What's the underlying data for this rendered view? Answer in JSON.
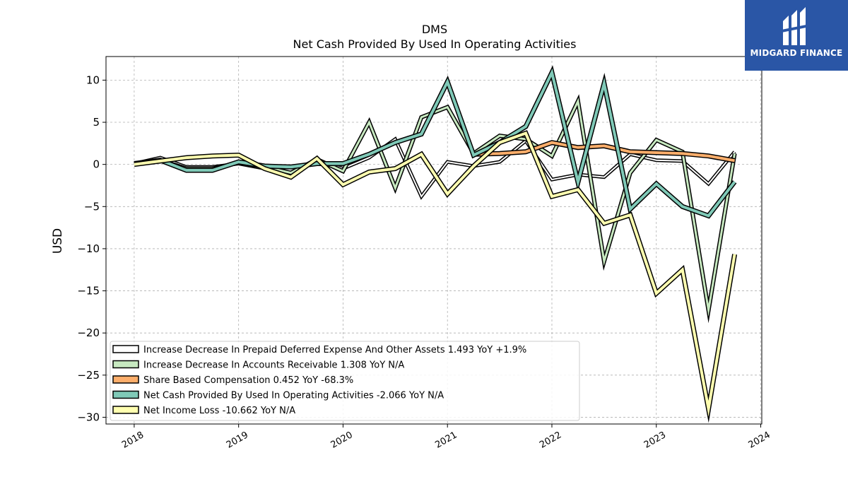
{
  "brand": {
    "name": "MIDGARD FINANCE",
    "color": "#2a56a6"
  },
  "chart_data": {
    "type": "line",
    "title": "DMS",
    "subtitle": "Net Cash Provided By Used In Operating Activities",
    "xlabel": "",
    "ylabel": "USD",
    "xlim": [
      2017.73,
      2024.01
    ],
    "ylim": [
      -30.8,
      12.8
    ],
    "x_ticks": [
      "2018",
      "2019",
      "2020",
      "2021",
      "2022",
      "2023",
      "2024"
    ],
    "y_ticks": [
      10,
      5,
      0,
      -5,
      -10,
      -15,
      -20,
      -25,
      -30
    ],
    "y_tick_labels": [
      "10",
      "5",
      "0",
      "−5",
      "−10",
      "−15",
      "−20",
      "−25",
      "−30"
    ],
    "grid": true,
    "legend_position": "lower-left",
    "series": [
      {
        "name": "Increase Decrease In Prepaid Deferred Expense And Other Assets  1.493 YoY +1.9%",
        "color": "#ffffff",
        "width": 2,
        "x": [
          2018.0,
          2018.25,
          2018.5,
          2018.75,
          2019.0,
          2019.25,
          2019.5,
          2019.75,
          2020.0,
          2020.25,
          2020.5,
          2020.75,
          2021.0,
          2021.25,
          2021.5,
          2021.75,
          2022.0,
          2022.25,
          2022.5,
          2022.75,
          2023.0,
          2023.25,
          2023.5,
          2023.75
        ],
        "values": [
          0.1,
          0.8,
          -0.3,
          -0.3,
          0.1,
          -0.5,
          -1.2,
          0.5,
          -0.5,
          0.8,
          3.0,
          -3.8,
          0.3,
          -0.2,
          0.3,
          2.8,
          -1.8,
          -1.2,
          -1.5,
          1.2,
          0.5,
          0.4,
          -2.3,
          1.5
        ]
      },
      {
        "name": "Increase Decrease In Accounts Receivable  1.308 YoY N/A",
        "color": "#c7e9c0",
        "width": 3,
        "x": [
          2018.0,
          2018.25,
          2018.5,
          2018.75,
          2019.0,
          2019.25,
          2019.5,
          2019.75,
          2020.0,
          2020.25,
          2020.5,
          2020.75,
          2021.0,
          2021.25,
          2021.5,
          2021.75,
          2022.0,
          2022.25,
          2022.5,
          2022.75,
          2023.0,
          2023.25,
          2023.5,
          2023.75
        ],
        "values": [
          0.1,
          0.5,
          -0.5,
          -0.5,
          0.2,
          -0.3,
          -1.0,
          0.6,
          -0.8,
          5.0,
          -2.8,
          5.6,
          6.8,
          1.3,
          3.4,
          3.0,
          1.0,
          7.5,
          -11.5,
          -1.0,
          2.9,
          1.5,
          -17.3,
          1.3
        ]
      },
      {
        "name": "Share Based Compensation  0.452 YoY -68.3%",
        "color": "#fdae6b",
        "width": 4,
        "x": [
          2021.25,
          2021.5,
          2021.75,
          2022.0,
          2022.25,
          2022.5,
          2022.75,
          2023.0,
          2023.25,
          2023.5,
          2023.75
        ],
        "values": [
          1.2,
          1.3,
          1.5,
          2.6,
          2.0,
          2.2,
          1.5,
          1.4,
          1.3,
          1.0,
          0.45
        ]
      },
      {
        "name": "Net Cash Provided By Used In Operating Activities  -2.066 YoY N/A",
        "color": "#7fc9b7",
        "width": 4,
        "x": [
          2018.0,
          2018.25,
          2018.5,
          2018.75,
          2019.0,
          2019.25,
          2019.5,
          2019.75,
          2020.0,
          2020.25,
          2020.5,
          2020.75,
          2021.0,
          2021.25,
          2021.5,
          2021.75,
          2022.0,
          2022.25,
          2022.5,
          2022.75,
          2023.0,
          2023.25,
          2023.5,
          2023.75
        ],
        "values": [
          0.1,
          0.5,
          -0.7,
          -0.7,
          0.3,
          -0.2,
          -0.3,
          0.1,
          0.1,
          1.2,
          2.6,
          3.6,
          9.8,
          1.1,
          2.6,
          4.5,
          10.9,
          -2.1,
          9.6,
          -5.3,
          -2.3,
          -5.0,
          -6.1,
          -2.07
        ]
      },
      {
        "name": "Net Income Loss  -10.662 YoY N/A",
        "color": "#ffffb0",
        "width": 4,
        "x": [
          2018.0,
          2018.25,
          2018.5,
          2018.75,
          2019.0,
          2019.25,
          2019.5,
          2019.75,
          2020.0,
          2020.25,
          2020.5,
          2020.75,
          2021.0,
          2021.25,
          2021.5,
          2021.75,
          2022.0,
          2022.25,
          2022.5,
          2022.75,
          2023.0,
          2023.25,
          2023.5,
          2023.75
        ],
        "values": [
          0.0,
          0.4,
          0.8,
          1.0,
          1.1,
          -0.5,
          -1.5,
          0.7,
          -2.4,
          -0.9,
          -0.5,
          1.2,
          -3.5,
          -0.2,
          2.6,
          3.7,
          -3.8,
          -3.0,
          -7.0,
          -6.0,
          -15.3,
          -12.5,
          -29.0,
          -10.66
        ]
      }
    ]
  }
}
